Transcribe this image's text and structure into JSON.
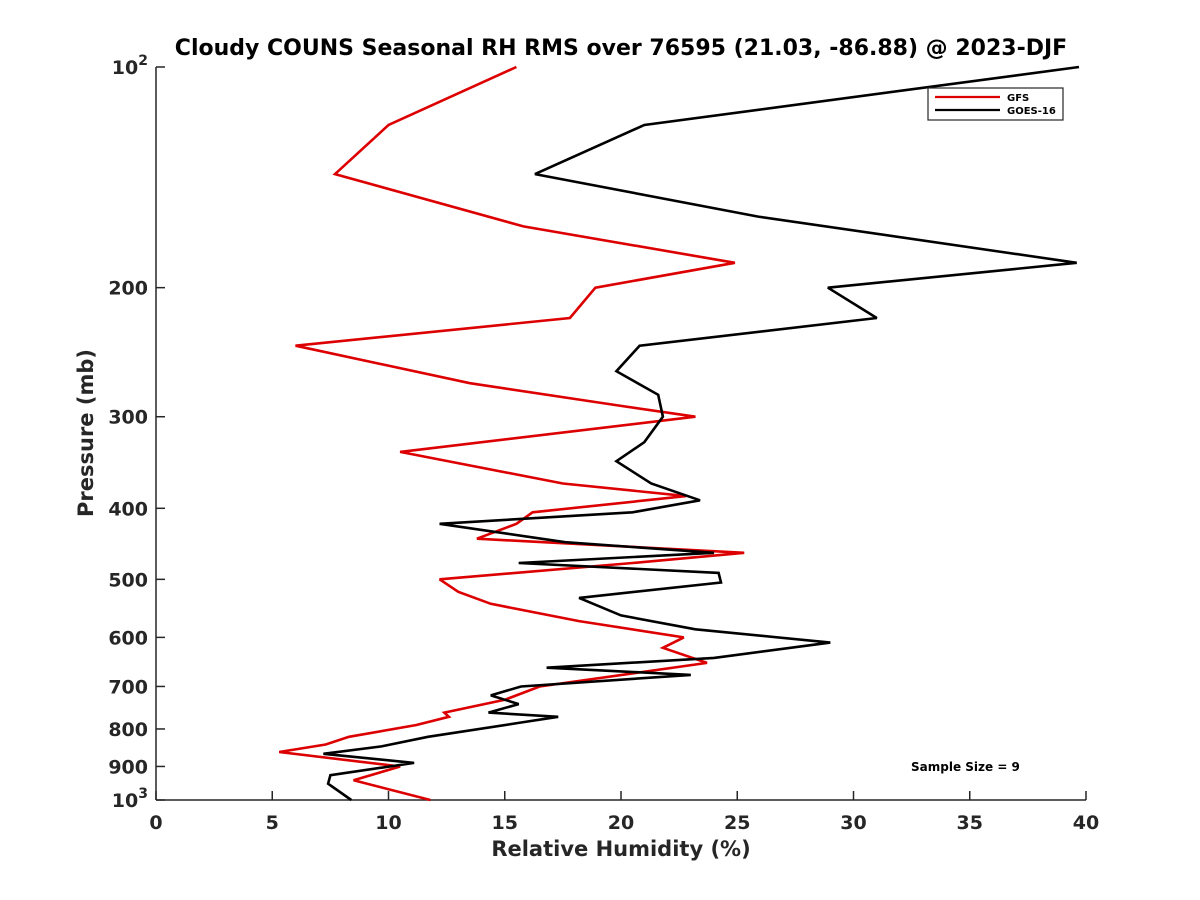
{
  "chart_data": {
    "type": "line",
    "title": "Cloudy COUNS Seasonal RH RMS over 76595 (21.03, -86.88) @ 2023-DJF",
    "xlabel": "Relative Humidity (%)",
    "ylabel": "Pressure (mb)",
    "xlim": [
      0,
      40
    ],
    "ylim": [
      100,
      1000
    ],
    "yscale": "log",
    "y_reversed": true,
    "x_ticks": [
      0,
      5,
      10,
      15,
      20,
      25,
      30,
      35,
      40
    ],
    "x_tick_labels": [
      "0",
      "5",
      "10",
      "15",
      "20",
      "25",
      "30",
      "35",
      "40"
    ],
    "y_ticks": [
      100,
      200,
      300,
      400,
      500,
      600,
      700,
      800,
      900,
      1000
    ],
    "y_tick_labels": [
      {
        "base": "10",
        "exp": "2"
      },
      {
        "text": "200"
      },
      {
        "text": "300"
      },
      {
        "text": "400"
      },
      {
        "text": "500"
      },
      {
        "text": "600"
      },
      {
        "text": "700"
      },
      {
        "text": "800"
      },
      {
        "text": "900"
      },
      {
        "base": "10",
        "exp": "3"
      }
    ],
    "legend_position": "top-right",
    "annotation": "Sample Size = 9",
    "series": [
      {
        "name": "GFS",
        "color": "#dd0000",
        "x": [
          15.5,
          10.0,
          7.7,
          15.8,
          24.9,
          18.9,
          17.8,
          6.0,
          13.5,
          20.0,
          23.2,
          10.5,
          17.5,
          22.8,
          16.2,
          15.5,
          13.8,
          25.3,
          20.5,
          12.2,
          13.0,
          14.4,
          18.2,
          22.7,
          21.8,
          23.7,
          16.5,
          15.0,
          12.4,
          12.6,
          11.2,
          8.3,
          7.3,
          5.3,
          10.5,
          8.5,
          11.8
        ],
        "y": [
          100,
          120,
          140,
          165,
          185,
          200,
          220,
          240,
          270,
          290,
          300,
          335,
          370,
          385,
          405,
          420,
          440,
          460,
          475,
          500,
          520,
          540,
          570,
          600,
          620,
          650,
          700,
          730,
          760,
          770,
          790,
          820,
          840,
          860,
          900,
          940,
          1000
        ]
      },
      {
        "name": "GOES-16",
        "color": "#000000",
        "x": [
          39.7,
          21.0,
          16.3,
          25.9,
          39.6,
          28.9,
          31.0,
          20.8,
          19.8,
          21.6,
          21.8,
          21.0,
          19.8,
          21.3,
          23.4,
          20.5,
          12.2,
          17.6,
          24.0,
          15.6,
          24.2,
          24.3,
          18.2,
          20.0,
          23.2,
          29.0,
          24.0,
          16.8,
          23.0,
          15.7,
          14.4,
          15.6,
          14.3,
          17.3,
          15.6,
          11.7,
          9.7,
          7.2,
          11.1,
          7.5,
          7.4,
          8.4
        ],
        "y": [
          100,
          120,
          140,
          160,
          185,
          200,
          220,
          240,
          260,
          280,
          300,
          325,
          345,
          370,
          390,
          405,
          420,
          445,
          460,
          475,
          490,
          505,
          530,
          560,
          585,
          610,
          640,
          660,
          675,
          700,
          720,
          740,
          760,
          770,
          785,
          820,
          845,
          865,
          890,
          925,
          950,
          1000
        ]
      }
    ]
  }
}
